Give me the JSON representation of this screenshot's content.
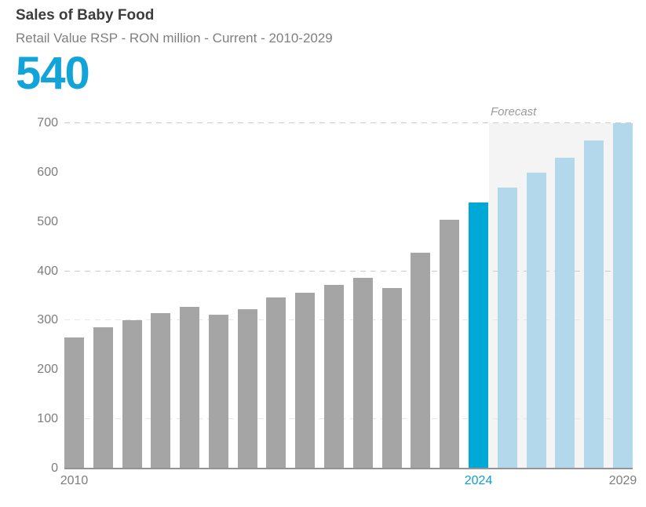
{
  "header": {
    "title": "Sales of Baby Food",
    "subtitle": "Retail Value RSP - RON million - Current - 2010-2029",
    "headline_value": "540"
  },
  "colors": {
    "headline_blue": "#12a4d9",
    "historic_bar": "#a5a5a5",
    "current_bar": "#00a8d5",
    "forecast_bar": "#b4d8eb",
    "forecast_background": "#f4f4f4",
    "axis_line": "#949494",
    "grid_strong": "#cccccc",
    "grid_faint": "#e7e7e7",
    "label_gray": "#7d7d7d",
    "x_label_highlight": "#0ca0cf"
  },
  "chart_data": {
    "type": "bar",
    "title": "Sales of Baby Food",
    "subtitle": "Retail Value RSP - RON million - Current - 2010-2029",
    "unit": "RON million",
    "headline_value": 540,
    "ylim": [
      0,
      700
    ],
    "y_tick_interval": 100,
    "y_tick_labels": [
      0,
      100,
      200,
      300,
      400,
      500,
      600,
      700
    ],
    "gridlines": [
      {
        "value": 700,
        "style": "strong"
      },
      {
        "value": 400,
        "style": "strong"
      },
      {
        "value": 300,
        "style": "faint"
      },
      {
        "value": 100,
        "style": "faint"
      }
    ],
    "grid": "dashed-horizontal",
    "legend_position": "none",
    "categories": [
      "2010",
      "2011",
      "2012",
      "2013",
      "2014",
      "2015",
      "2016",
      "2017",
      "2018",
      "2019",
      "2020",
      "2021",
      "2022",
      "2023",
      "2024",
      "2025",
      "2026",
      "2027",
      "2028",
      "2029"
    ],
    "values": [
      265,
      287,
      301,
      315,
      328,
      312,
      323,
      347,
      356,
      373,
      387,
      366,
      437,
      505,
      540,
      570,
      600,
      630,
      665,
      700
    ],
    "segments": [
      "historic",
      "historic",
      "historic",
      "historic",
      "historic",
      "historic",
      "historic",
      "historic",
      "historic",
      "historic",
      "historic",
      "historic",
      "historic",
      "historic",
      "current",
      "forecast",
      "forecast",
      "forecast",
      "forecast",
      "forecast"
    ],
    "highlight_year": "2024",
    "forecast_label": "Forecast",
    "forecast_start_year": "2025",
    "x_tick_labels": [
      {
        "text": "2010",
        "year_index": 0,
        "highlight": false
      },
      {
        "text": "2024",
        "year_index": 14,
        "highlight": true
      },
      {
        "text": "2029",
        "year_index": 19,
        "highlight": false
      }
    ]
  }
}
